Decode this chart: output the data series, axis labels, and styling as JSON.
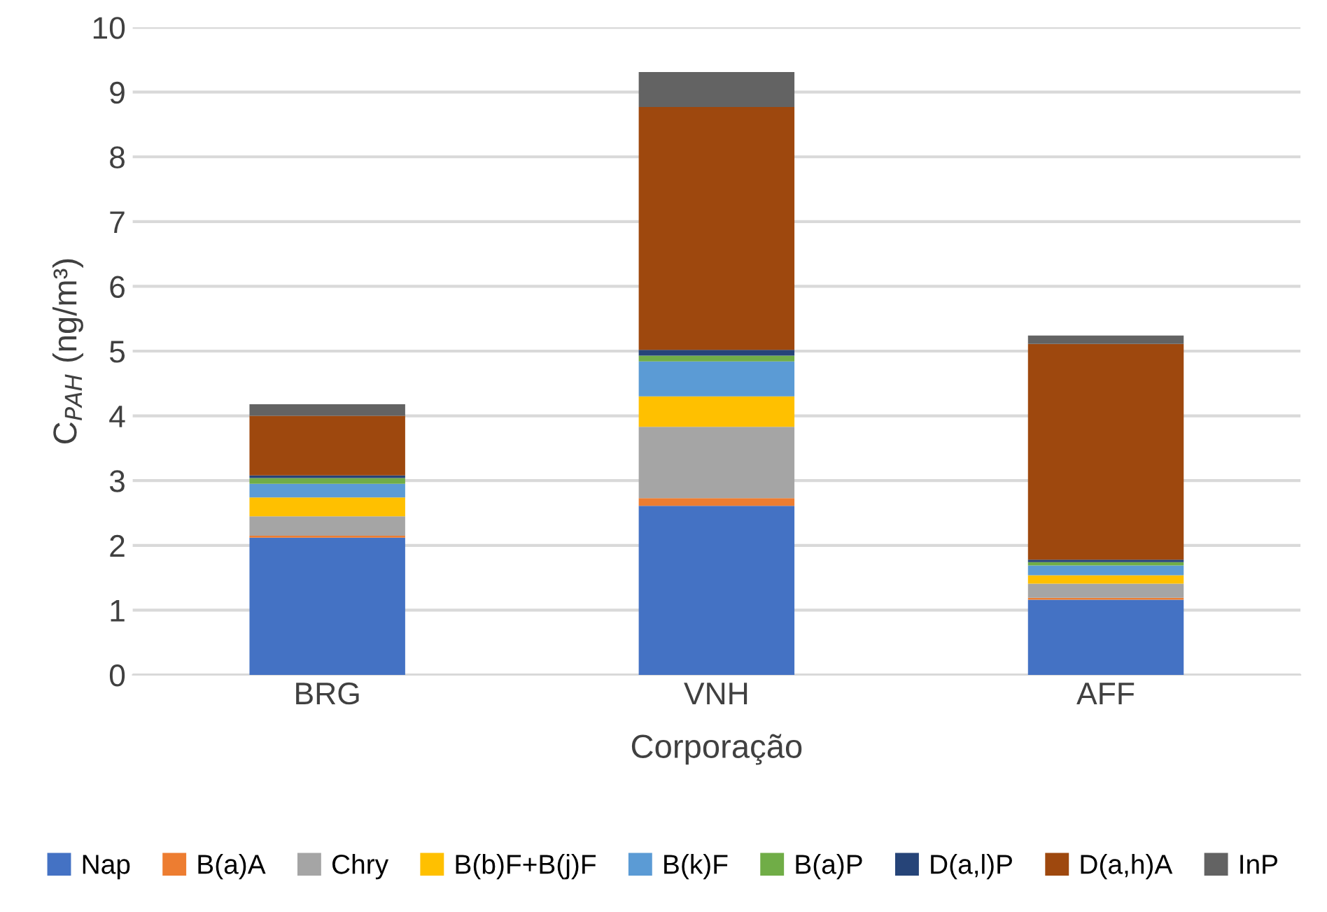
{
  "chart_data": {
    "type": "bar",
    "stacked": true,
    "xlabel": "Corporação",
    "ylabel": "C$_{PAH}$ (ng/m³)",
    "categories": [
      "BRG",
      "VNH",
      "AFF"
    ],
    "series": [
      {
        "name": "Nap",
        "color": "#4472c4",
        "values": [
          2.12,
          2.61,
          1.16
        ]
      },
      {
        "name": "B(a)A",
        "color": "#ed7d31",
        "values": [
          0.03,
          0.12,
          0.03
        ]
      },
      {
        "name": "Chry",
        "color": "#a5a5a5",
        "values": [
          0.3,
          1.1,
          0.22
        ]
      },
      {
        "name": "B(b)F+B(j)F",
        "color": "#ffc000",
        "values": [
          0.29,
          0.47,
          0.13
        ]
      },
      {
        "name": "B(k)F",
        "color": "#5b9bd5",
        "values": [
          0.21,
          0.54,
          0.15
        ]
      },
      {
        "name": "B(a)P",
        "color": "#70ad47",
        "values": [
          0.09,
          0.09,
          0.05
        ]
      },
      {
        "name": "D(a,l)P",
        "color": "#264478",
        "values": [
          0.04,
          0.09,
          0.04
        ]
      },
      {
        "name": "D(a,h)A",
        "color": "#9e480e",
        "values": [
          0.92,
          3.75,
          3.33
        ]
      },
      {
        "name": "InP",
        "color": "#636363",
        "values": [
          0.18,
          0.54,
          0.13
        ]
      }
    ],
    "ylim": [
      0,
      10
    ],
    "yticks": [
      0,
      1,
      2,
      3,
      4,
      5,
      6,
      7,
      8,
      9,
      10
    ],
    "grid": "y",
    "legend": "bottom"
  }
}
